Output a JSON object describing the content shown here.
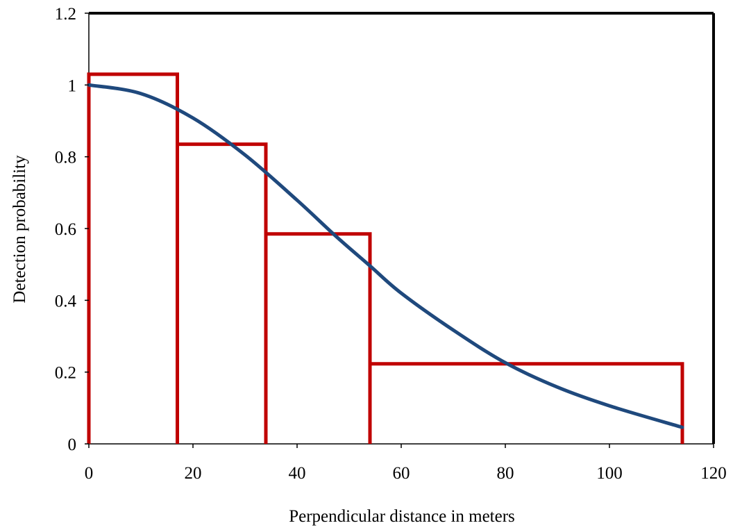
{
  "chart_data": {
    "type": "line",
    "title": "",
    "xlabel": "Perpendicular distance in meters",
    "ylabel": "Detection probability",
    "xlim": [
      0,
      120
    ],
    "ylim": [
      0,
      1.2
    ],
    "x_ticks": [
      "0",
      "20",
      "40",
      "60",
      "80",
      "100",
      "120"
    ],
    "y_ticks": [
      "0",
      "0.2",
      "0.4",
      "0.6",
      "0.8",
      "1",
      "1.2"
    ],
    "grid": false,
    "legend": "none",
    "histogram": {
      "bins": [
        {
          "x0": 0,
          "x1": 17,
          "value": 1.03
        },
        {
          "x0": 17,
          "x1": 34,
          "value": 0.835
        },
        {
          "x0": 34,
          "x1": 54,
          "value": 0.585
        },
        {
          "x0": 54,
          "x1": 114,
          "value": 0.223
        }
      ],
      "color": "#c00000"
    },
    "series": [
      {
        "x": [
          0,
          10,
          20,
          30,
          40,
          47.5,
          54,
          60,
          70,
          80,
          90,
          100,
          114
        ],
        "y": [
          1.0,
          0.976,
          0.908,
          0.805,
          0.679,
          0.578,
          0.496,
          0.42,
          0.317,
          0.226,
          0.158,
          0.106,
          0.046
        ],
        "color": "#1f497d"
      }
    ],
    "colors": {
      "frame": "#000000",
      "histogram": "#c00000",
      "curve": "#1f497d"
    }
  }
}
